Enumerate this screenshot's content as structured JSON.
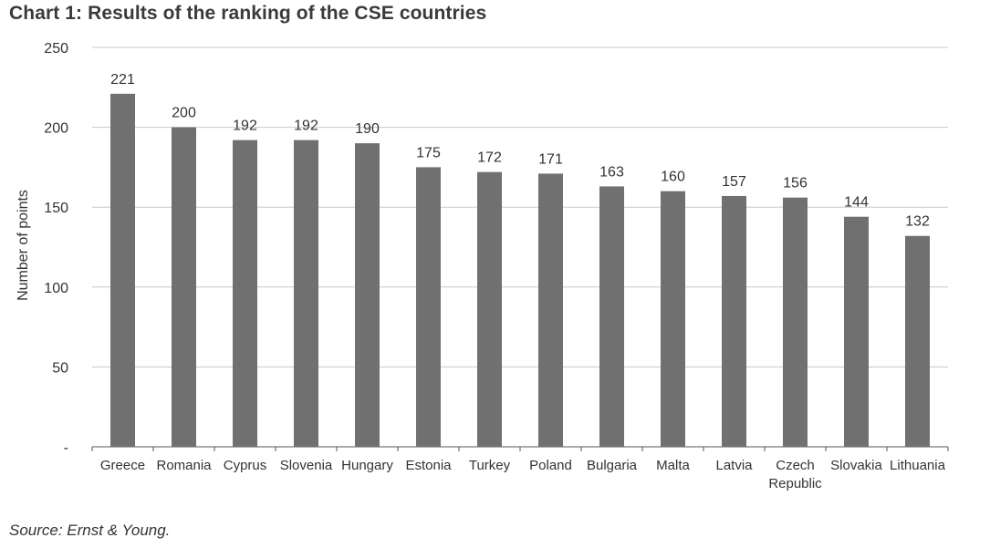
{
  "title": "Chart 1: Results of the ranking of the CSE countries",
  "source": "Source: Ernst & Young.",
  "colors": {
    "bar": "#707070",
    "grid": "#c8c8c8",
    "axis": "#555555",
    "text": "#333333"
  },
  "chart_data": {
    "type": "bar",
    "title": "Chart 1: Results of the ranking of the CSE countries",
    "xlabel": "",
    "ylabel": "Number of points",
    "ylim": [
      0,
      250
    ],
    "yticks": [
      0,
      50,
      100,
      150,
      200,
      250
    ],
    "ytick_labels": [
      "-",
      "50",
      "100",
      "150",
      "200",
      "250"
    ],
    "grid": "horizontal",
    "legend": "none",
    "categories": [
      "Greece",
      "Romania",
      "Cyprus",
      "Slovenia",
      "Hungary",
      "Estonia",
      "Turkey",
      "Poland",
      "Bulgaria",
      "Malta",
      "Latvia",
      "Czech Republic",
      "Slovakia",
      "Lithuania"
    ],
    "category_label_lines": [
      [
        "Greece"
      ],
      [
        "Romania"
      ],
      [
        "Cyprus"
      ],
      [
        "Slovenia"
      ],
      [
        "Hungary"
      ],
      [
        "Estonia"
      ],
      [
        "Turkey"
      ],
      [
        "Poland"
      ],
      [
        "Bulgaria"
      ],
      [
        "Malta"
      ],
      [
        "Latvia"
      ],
      [
        "Czech",
        "Republic"
      ],
      [
        "Slovakia"
      ],
      [
        "Lithuania"
      ]
    ],
    "values": [
      221,
      200,
      192,
      192,
      190,
      175,
      172,
      171,
      163,
      160,
      157,
      156,
      144,
      132
    ],
    "data_labels": [
      "221",
      "200",
      "192",
      "192",
      "190",
      "175",
      "172",
      "171",
      "163",
      "160",
      "157",
      "156",
      "144",
      "132"
    ]
  }
}
